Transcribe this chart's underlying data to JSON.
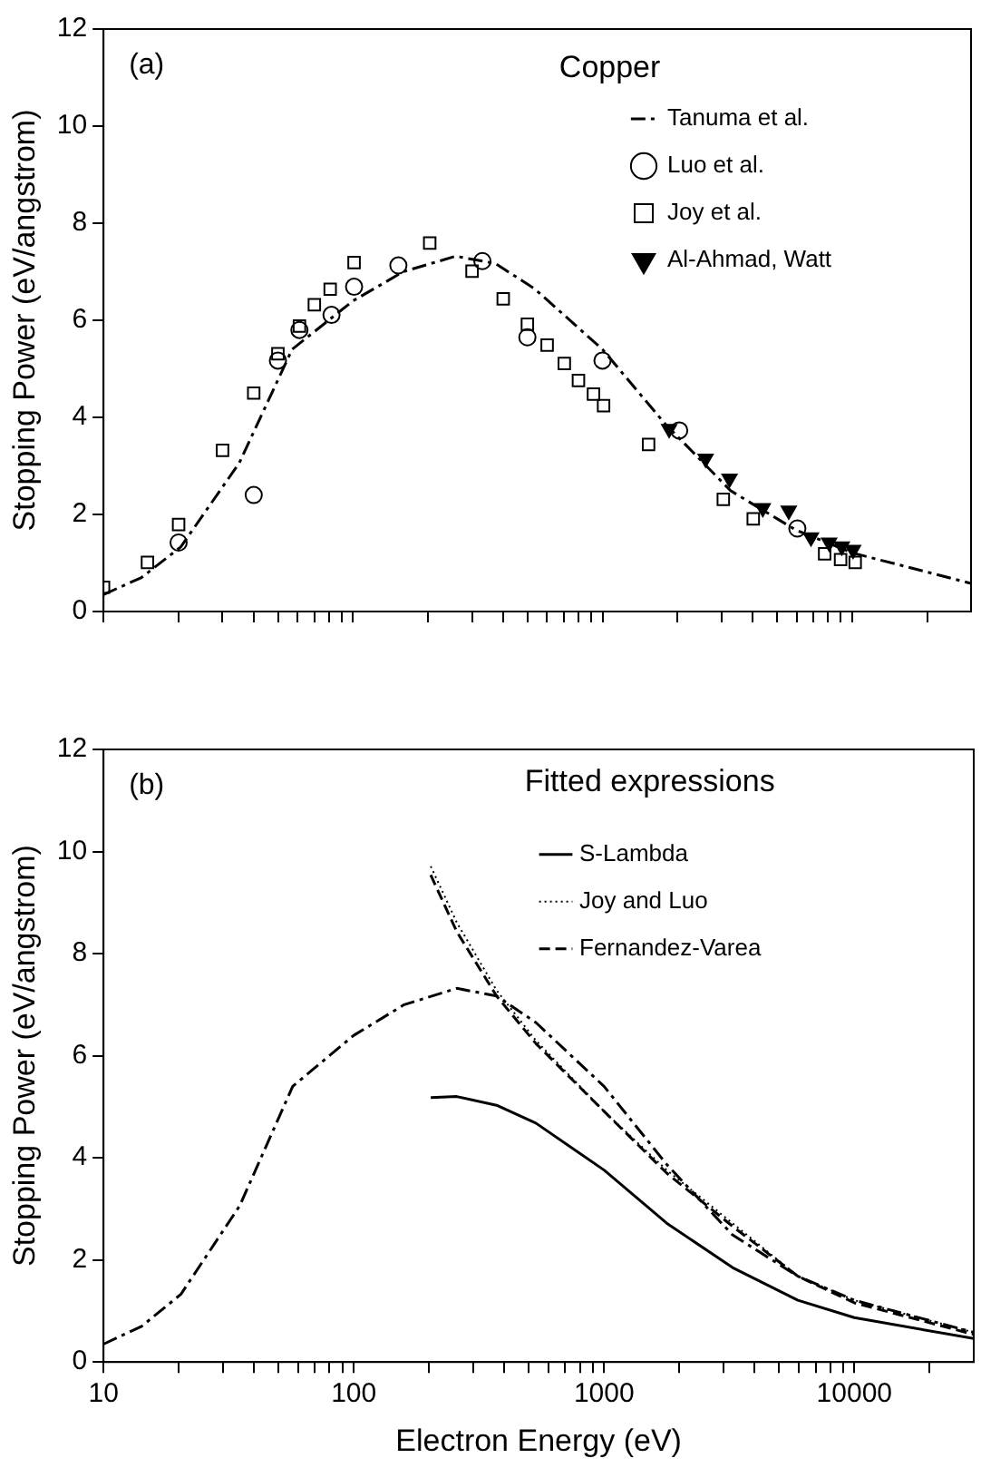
{
  "chart_data": [
    {
      "type": "line",
      "title": "Copper",
      "annotations": [
        "(a)"
      ],
      "ylabel": "Stopping Power (eV/angstrom)",
      "log": "x",
      "xlim": [
        10,
        30000
      ],
      "ylim": [
        0,
        12
      ],
      "yticks": [
        0,
        2,
        4,
        6,
        8,
        10,
        12
      ],
      "xticks": [
        {
          "value": 10,
          "label": null
        },
        {
          "value": 20,
          "label": null
        },
        {
          "value": 30,
          "label": null
        },
        {
          "value": 40,
          "label": null
        },
        {
          "value": 50,
          "label": null
        },
        {
          "value": 60,
          "label": null
        },
        {
          "value": 70,
          "label": null
        },
        {
          "value": 80,
          "label": null
        },
        {
          "value": 90,
          "label": null
        },
        {
          "value": 100,
          "label": null
        },
        {
          "value": 200,
          "label": null
        },
        {
          "value": 300,
          "label": null
        },
        {
          "value": 400,
          "label": null
        },
        {
          "value": 500,
          "label": null
        },
        {
          "value": 600,
          "label": null
        },
        {
          "value": 700,
          "label": null
        },
        {
          "value": 800,
          "label": null
        },
        {
          "value": 900,
          "label": null
        },
        {
          "value": 1000,
          "label": null
        },
        {
          "value": 2000,
          "label": null
        },
        {
          "value": 3000,
          "label": null
        },
        {
          "value": 4000,
          "label": null
        },
        {
          "value": 5000,
          "label": null
        },
        {
          "value": 6000,
          "label": null
        },
        {
          "value": 7000,
          "label": null
        },
        {
          "value": 8000,
          "label": null
        },
        {
          "value": 9000,
          "label": null
        },
        {
          "value": 10000,
          "label": null
        },
        {
          "value": 20000,
          "label": null
        }
      ],
      "tick_labels": "y",
      "grid": false,
      "legend": "top right",
      "series": [
        {
          "name": "Tanuma et al.",
          "type": "line",
          "color": "#000000",
          "line_style": "dashdot",
          "marker": "none",
          "x": [
            10,
            14.2,
            20.4,
            35,
            57,
            100,
            159,
            258,
            372,
            534,
            1000,
            1780,
            3260,
            5950,
            10000,
            30000
          ],
          "values": [
            0.35,
            0.7,
            1.33,
            3.06,
            5.4,
            6.4,
            7.0,
            7.32,
            7.17,
            6.65,
            5.4,
            3.87,
            2.49,
            1.68,
            1.21,
            0.58
          ]
        },
        {
          "name": "Luo et al.",
          "type": "scatter",
          "color": "#000000",
          "marker": "circle",
          "x": [
            20,
            40,
            50,
            61,
            82,
            101,
            152,
            330,
            500,
            1000,
            2030,
            6040
          ],
          "values": [
            1.42,
            2.4,
            5.17,
            5.8,
            6.11,
            6.69,
            7.13,
            7.22,
            5.65,
            5.17,
            3.73,
            1.71
          ]
        },
        {
          "name": "Joy et al.",
          "type": "scatter",
          "color": "#000000",
          "marker": "square",
          "x": [
            10,
            15,
            20,
            30,
            40,
            50,
            61,
            70,
            81,
            101,
            203,
            300,
            400,
            500,
            600,
            703,
            801,
            920,
            1010,
            1530,
            3050,
            4020,
            7770,
            9000,
            10300
          ],
          "values": [
            0.5,
            1.01,
            1.79,
            3.32,
            4.5,
            5.31,
            5.88,
            6.32,
            6.64,
            7.19,
            7.59,
            7.01,
            6.44,
            5.92,
            5.49,
            5.11,
            4.76,
            4.48,
            4.24,
            3.44,
            2.31,
            1.91,
            1.19,
            1.07,
            1.01
          ]
        },
        {
          "name": "Al-Ahmad, Watt",
          "type": "scatter",
          "color": "#000000",
          "marker": "triangle",
          "x": [
            1850,
            2590,
            3230,
            4390,
            5580,
            6850,
            8100,
            9100,
            10100
          ],
          "values": [
            3.76,
            3.15,
            2.74,
            2.13,
            2.08,
            1.53,
            1.42,
            1.34,
            1.27
          ]
        }
      ]
    },
    {
      "type": "line",
      "legend_title": "Fitted expressions",
      "annotations": [
        "(b)"
      ],
      "xlabel": "Electron Energy (eV)",
      "ylabel": "Stopping Power (eV/angstrom)",
      "log": "x",
      "xlim": [
        10,
        30000
      ],
      "ylim": [
        0,
        12
      ],
      "yticks": [
        0,
        2,
        4,
        6,
        8,
        10,
        12
      ],
      "xticks": [
        10,
        {
          "value": 20,
          "label": null
        },
        {
          "value": 30,
          "label": null
        },
        {
          "value": 40,
          "label": null
        },
        {
          "value": 50,
          "label": null
        },
        {
          "value": 60,
          "label": null
        },
        {
          "value": 70,
          "label": null
        },
        {
          "value": 80,
          "label": null
        },
        {
          "value": 90,
          "label": null
        },
        100,
        {
          "value": 200,
          "label": null
        },
        {
          "value": 300,
          "label": null
        },
        {
          "value": 400,
          "label": null
        },
        {
          "value": 500,
          "label": null
        },
        {
          "value": 600,
          "label": null
        },
        {
          "value": 700,
          "label": null
        },
        {
          "value": 800,
          "label": null
        },
        {
          "value": 900,
          "label": null
        },
        1000,
        {
          "value": 2000,
          "label": null
        },
        {
          "value": 3000,
          "label": null
        },
        {
          "value": 4000,
          "label": null
        },
        {
          "value": 5000,
          "label": null
        },
        {
          "value": 6000,
          "label": null
        },
        {
          "value": 7000,
          "label": null
        },
        {
          "value": 8000,
          "label": null
        },
        {
          "value": 9000,
          "label": null
        },
        10000,
        {
          "value": 20000,
          "label": null
        }
      ],
      "grid": false,
      "legend": "top right",
      "series": [
        {
          "name": "S-Lambda",
          "color": "#000000",
          "line_style": "solid",
          "x": [
            203,
            258,
            372,
            534,
            1000,
            1780,
            3260,
            5950,
            10000,
            30000
          ],
          "values": [
            5.18,
            5.2,
            5.03,
            4.68,
            3.76,
            2.72,
            1.85,
            1.21,
            0.87,
            0.46
          ]
        },
        {
          "name": "Joy and Luo",
          "color": "#000000",
          "line_style": "dotted",
          "x": [
            203,
            258,
            372,
            534,
            1000,
            1780,
            3260,
            5950,
            10000,
            30000
          ],
          "values": [
            9.71,
            8.61,
            7.28,
            6.3,
            4.91,
            3.76,
            2.72,
            1.68,
            1.21,
            0.58
          ]
        },
        {
          "name": "Fernandez-Varea",
          "color": "#000000",
          "line_style": "dashed",
          "x": [
            203,
            258,
            372,
            534,
            1000,
            1780,
            3260,
            5950,
            10000,
            30000
          ],
          "values": [
            9.54,
            8.43,
            7.17,
            6.24,
            4.91,
            3.7,
            2.66,
            1.68,
            1.16,
            0.54
          ]
        },
        {
          "color": "#000000",
          "line_style": "dashdot",
          "x": [
            10,
            14.2,
            20.4,
            35,
            57,
            100,
            159,
            258,
            372,
            534,
            1000,
            1780,
            3260,
            5950,
            10000,
            30000
          ],
          "values": [
            0.35,
            0.7,
            1.33,
            3.06,
            5.4,
            6.4,
            7.0,
            7.32,
            7.17,
            6.65,
            5.4,
            3.87,
            2.49,
            1.68,
            1.21,
            0.58
          ]
        }
      ]
    }
  ]
}
